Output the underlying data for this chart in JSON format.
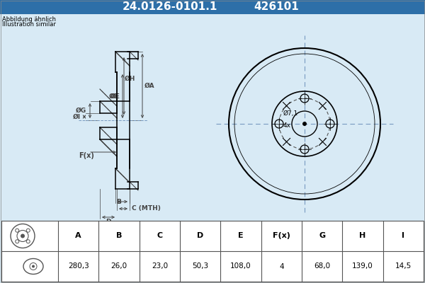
{
  "title_part_number": "24.0126-0101.1",
  "title_ref_number": "426101",
  "header_bg": "#2d6fa8",
  "header_text_color": "#ffffff",
  "body_bg": "#d8eaf5",
  "table_bg": "#ffffff",
  "note_line1": "Abbildung ähnlich",
  "note_line2": "Illustration similar",
  "table_headers": [
    "A",
    "B",
    "C",
    "D",
    "E",
    "F(x)",
    "G",
    "H",
    "I"
  ],
  "table_values": [
    "280,3",
    "26,0",
    "23,0",
    "50,3",
    "108,0",
    "4",
    "68,0",
    "139,0",
    "14,5"
  ]
}
